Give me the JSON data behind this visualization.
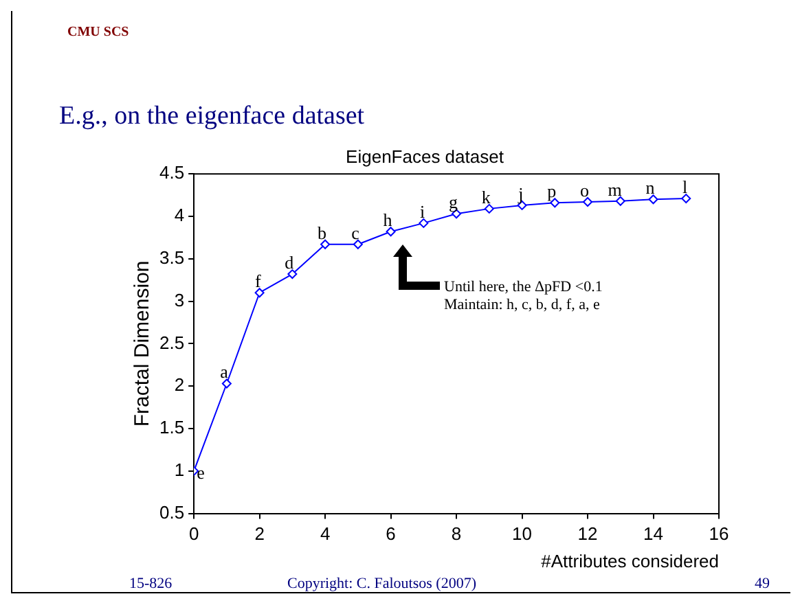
{
  "chart_data": {
    "type": "line",
    "title": "EigenFaces dataset",
    "xlabel": "#Attributes considered",
    "ylabel": "Fractal Dimension",
    "x": [
      0,
      1,
      2,
      3,
      4,
      5,
      6,
      7,
      8,
      9,
      10,
      11,
      12,
      13,
      14,
      15
    ],
    "series": [
      {
        "color": "#0000ff",
        "values": [
          1.0,
          2.03,
          3.1,
          3.32,
          3.67,
          3.67,
          3.82,
          3.92,
          4.03,
          4.09,
          4.13,
          4.16,
          4.17,
          4.18,
          4.2,
          4.21
        ]
      }
    ],
    "xlim": [
      0,
      16
    ],
    "xticks": [
      0,
      2,
      4,
      6,
      8,
      10,
      12,
      14,
      16
    ],
    "ylim": [
      0.5,
      4.5
    ],
    "yticks": [
      0.5,
      1,
      1.5,
      2,
      2.5,
      3,
      3.5,
      4,
      4.5
    ],
    "grid": false,
    "legend": false,
    "marker": "diamond",
    "line_style": "solid",
    "annotations": [
      "CMU SCS",
      "E.g., on the eigenface dataset",
      "15-826",
      "Copyright: C. Faloutsos (2007)",
      "49",
      "Until here, the ΔpFD <0.1\nMaintain: h, c, b, d, f, a, e",
      {
        "text": "e",
        "x": 0,
        "y": 1.0
      },
      {
        "text": "a",
        "x": 1,
        "y": 2.03
      },
      {
        "text": "f",
        "x": 2,
        "y": 3.1
      },
      {
        "text": "d",
        "x": 3,
        "y": 3.32
      },
      {
        "text": "b",
        "x": 4,
        "y": 3.67
      },
      {
        "text": "c",
        "x": 5,
        "y": 3.67
      },
      {
        "text": "h",
        "x": 6,
        "y": 3.82
      },
      {
        "text": "i",
        "x": 7,
        "y": 3.92
      },
      {
        "text": "g",
        "x": 8,
        "y": 4.03
      },
      {
        "text": "k",
        "x": 9,
        "y": 4.09
      },
      {
        "text": "j",
        "x": 10,
        "y": 4.13
      },
      {
        "text": "p",
        "x": 11,
        "y": 4.16
      },
      {
        "text": "o",
        "x": 12,
        "y": 4.17
      },
      {
        "text": "m",
        "x": 13,
        "y": 4.18
      },
      {
        "text": "n",
        "x": 14,
        "y": 4.2
      },
      {
        "text": "l",
        "x": 15,
        "y": 4.21
      }
    ]
  }
}
